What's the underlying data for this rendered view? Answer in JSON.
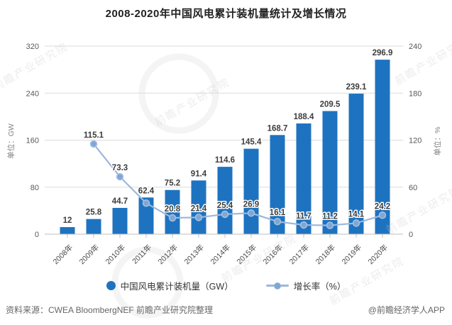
{
  "title": "2008-2020年中国风电累计装机量统计及增长情况",
  "chart_data": {
    "type": "bar+line",
    "categories": [
      "2008年",
      "2009年",
      "2010年",
      "2011年",
      "2012年",
      "2013年",
      "2014年",
      "2015年",
      "2016年",
      "2017年",
      "2018年",
      "2019年",
      "2020年"
    ],
    "series": [
      {
        "name": "中国风电累计装机量（GW）",
        "type": "bar",
        "axis": "left",
        "values": [
          12,
          25.8,
          44.7,
          62.4,
          75.2,
          91.4,
          114.6,
          145.4,
          168.7,
          188.4,
          209.5,
          239.1,
          296.9
        ]
      },
      {
        "name": "增长率（%）",
        "type": "line",
        "axis": "right",
        "values": [
          null,
          115.1,
          73.3,
          39.6,
          20.8,
          21.4,
          25.4,
          26.9,
          16.1,
          11.7,
          11.2,
          14.1,
          24.2
        ],
        "data_labels": [
          "",
          "115.1",
          "73.3",
          "",
          "20.8",
          "21.4",
          "25.4",
          "26.9",
          "16.1",
          "11.7",
          "11.2",
          "14.1",
          "24.2"
        ]
      }
    ],
    "left_axis": {
      "title": "单位：GW",
      "ticks": [
        0,
        80,
        160,
        240,
        320
      ],
      "max": 320
    },
    "right_axis": {
      "title": "单位：%",
      "ticks": [
        0,
        60,
        120,
        180,
        240
      ],
      "max": 240
    },
    "grid": true,
    "legend_position": "bottom"
  },
  "legend": {
    "bar_label": "中国风电累计装机量（GW）",
    "line_label": "增长率（%）"
  },
  "footer": {
    "source": "资料来源：CWEA BloombergNEF 前瞻产业研究院整理",
    "credit": "@前瞻经济学人APP"
  },
  "watermark": {
    "text": "前瞻产业研究院"
  },
  "colors": {
    "bar": "#1E73C0",
    "line": "#9CB8DC",
    "marker_fill": "#7FA7D4",
    "marker_edge": "#A7C1E2",
    "grid": "#DBDBDB",
    "axis_line": "#BFBFBF",
    "value_label": "#3D3D3D",
    "axis_text": "#595959",
    "axis_title": "#808080",
    "watermark": "#C9C9C9"
  }
}
